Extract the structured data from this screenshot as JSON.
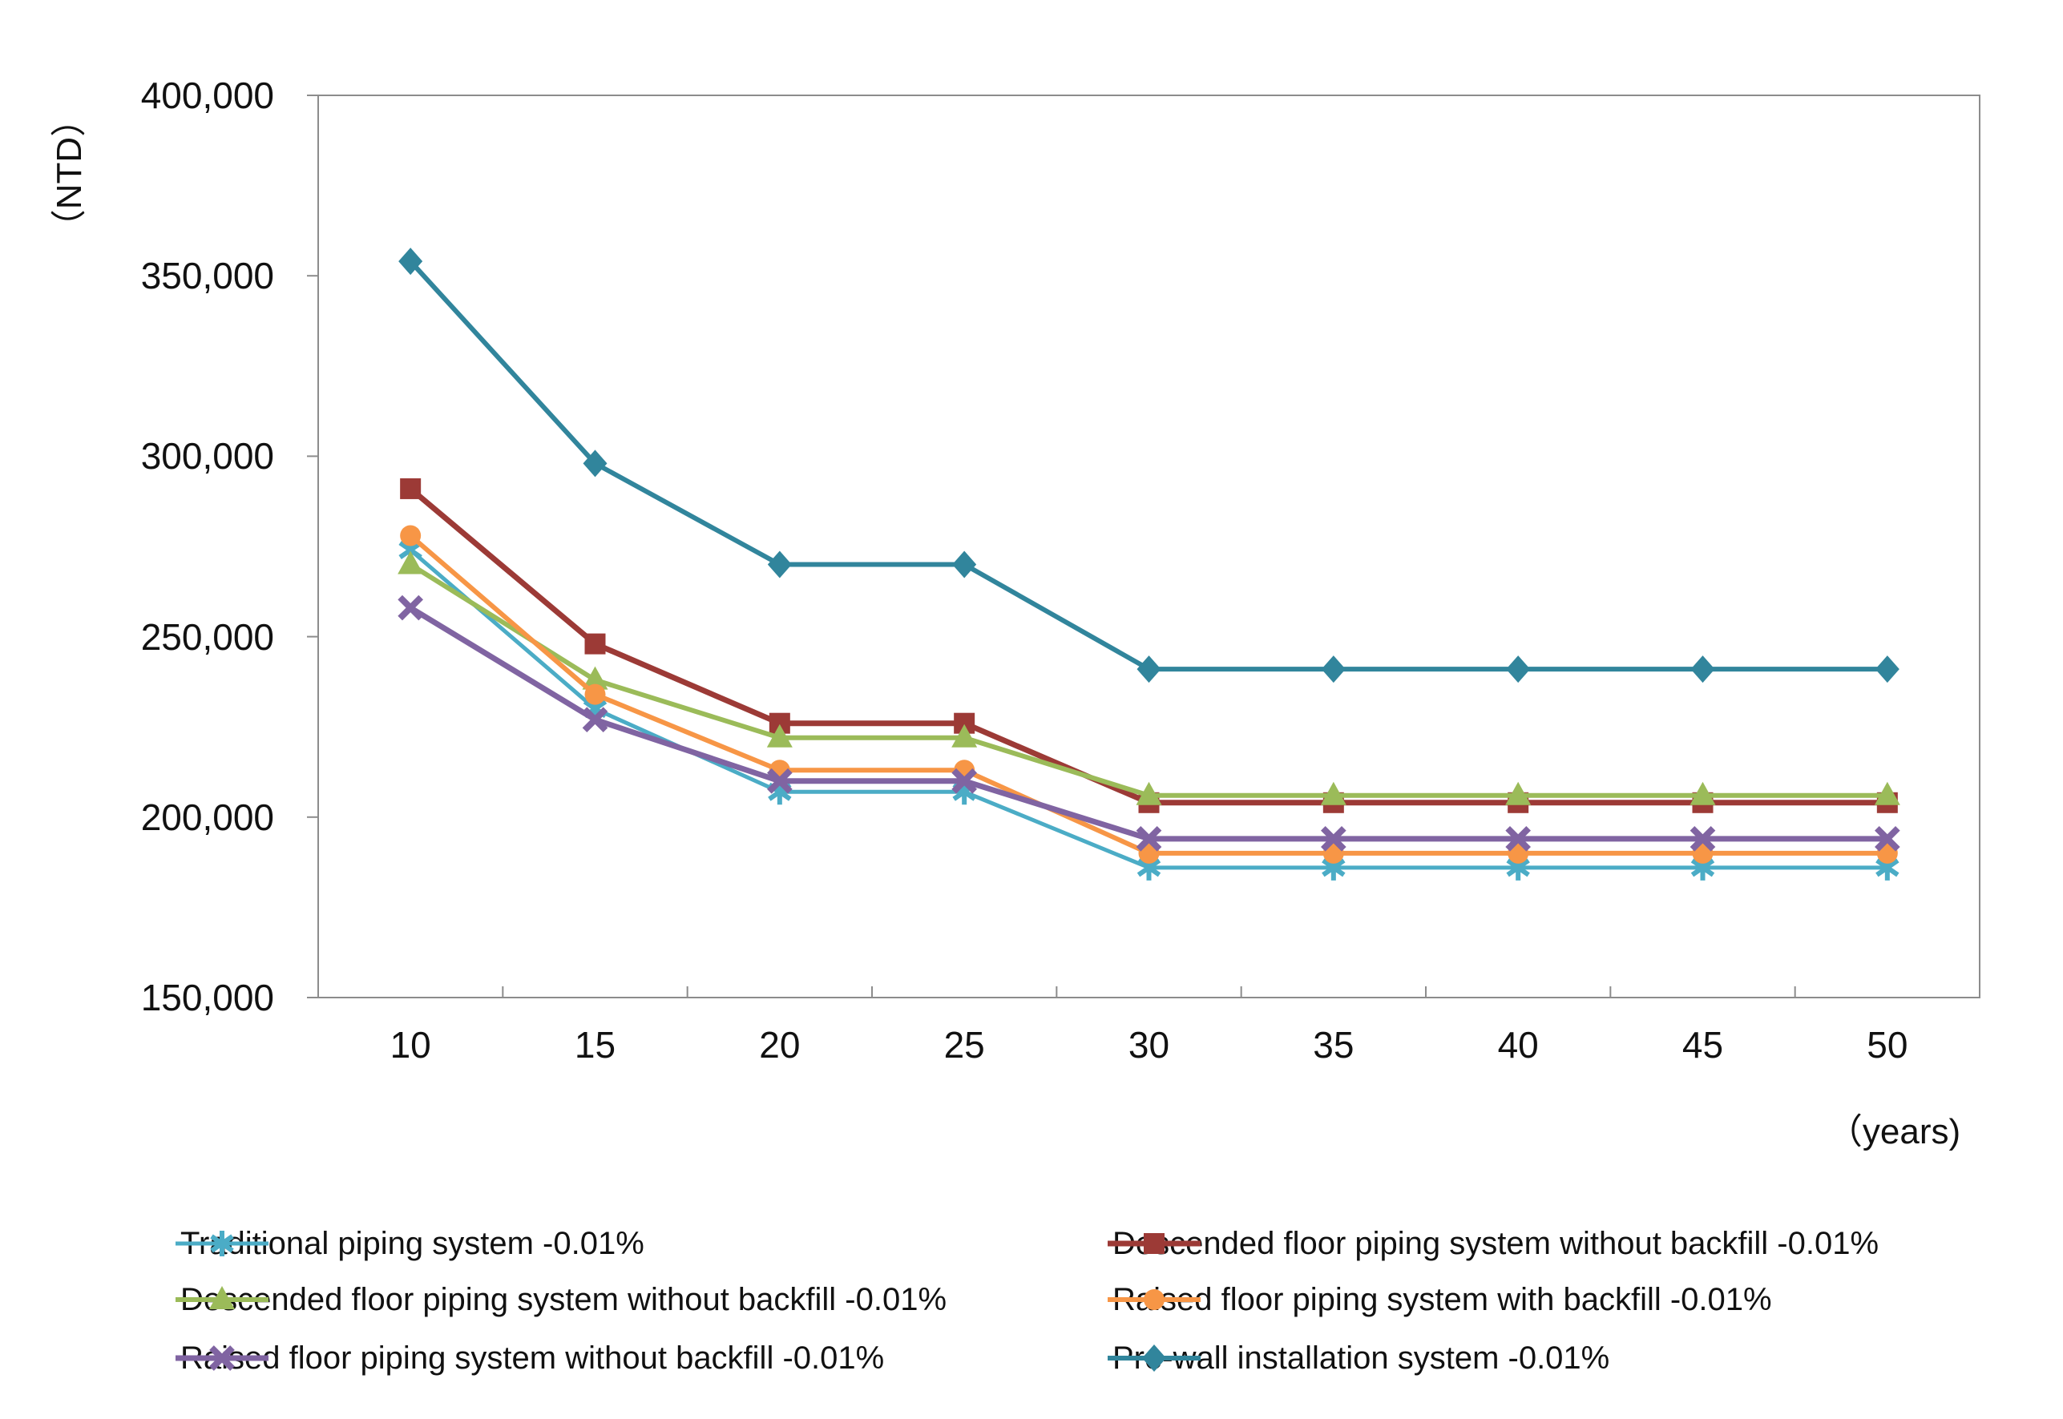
{
  "chart_data": {
    "type": "line",
    "title": "",
    "xlabel": "（years)",
    "ylabel": "（NTD）",
    "categories": [
      "10",
      "15",
      "20",
      "25",
      "30",
      "35",
      "40",
      "45",
      "50"
    ],
    "x_axis": {
      "unit": "years",
      "tick_labels": [
        "10",
        "15",
        "20",
        "25",
        "30",
        "35",
        "40",
        "45",
        "50"
      ]
    },
    "y_axis": {
      "unit": "NTD",
      "min": 150000,
      "max": 400000,
      "step": 50000,
      "tick_labels": [
        "400,000",
        "350,000",
        "300,000",
        "250,000",
        "200,000",
        "150,000"
      ]
    },
    "grid": "off",
    "legend_position": "bottom-two-columns",
    "series": [
      {
        "name": "Traditional piping system -0.01%",
        "color": "#4BACC6",
        "marker": "asterisk",
        "values": [
          274000,
          230000,
          207000,
          207000,
          186000,
          186000,
          186000,
          186000,
          186000
        ]
      },
      {
        "name": "Descended floor piping system without backfill -0.01%",
        "color": "#9C3A36",
        "marker": "square",
        "values": [
          291000,
          248000,
          226000,
          226000,
          204000,
          204000,
          204000,
          204000,
          204000
        ]
      },
      {
        "name": "Descended floor piping system without backfill -0.01%",
        "color": "#9BBB59",
        "marker": "triangle",
        "values": [
          270000,
          238000,
          222000,
          222000,
          206000,
          206000,
          206000,
          206000,
          206000
        ]
      },
      {
        "name": "Raised floor piping system with backfill -0.01%",
        "color": "#F79646",
        "marker": "circle",
        "values": [
          278000,
          234000,
          213000,
          213000,
          190000,
          190000,
          190000,
          190000,
          190000
        ]
      },
      {
        "name": "Raised floor piping system without backfill -0.01%",
        "color": "#8064A2",
        "marker": "x",
        "values": [
          258000,
          227000,
          210000,
          210000,
          194000,
          194000,
          194000,
          194000,
          194000
        ]
      },
      {
        "name": "Pre-wall installation system -0.01%",
        "color": "#31859C",
        "marker": "diamond",
        "values": [
          354000,
          298000,
          270000,
          270000,
          241000,
          241000,
          241000,
          241000,
          241000
        ]
      }
    ]
  }
}
